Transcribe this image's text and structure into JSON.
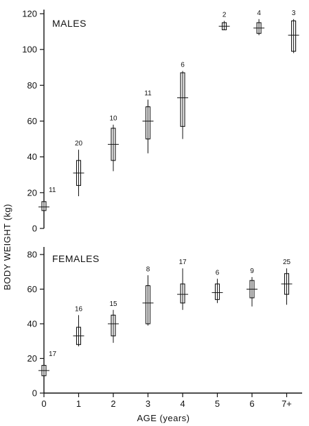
{
  "chart_data": {
    "type": "box-range",
    "ylabel": "BODY WEIGHT (kg)",
    "xlabel": "AGE (years)",
    "x_tick_labels": [
      "0",
      "1",
      "2",
      "3",
      "4",
      "5",
      "6",
      "7+"
    ],
    "panels": [
      {
        "label": "MALES",
        "ylim": [
          0,
          120
        ],
        "yticks": [
          0,
          20,
          40,
          60,
          80,
          100,
          120
        ],
        "groups": [
          {
            "age": 0,
            "n": "11",
            "min": 9,
            "max": 18,
            "box_low": 10,
            "box_high": 15,
            "mean": 12
          },
          {
            "age": 1,
            "n": "20",
            "min": 18,
            "max": 44,
            "box_low": 24,
            "box_high": 38,
            "mean": 31
          },
          {
            "age": 2,
            "n": "10",
            "min": 32,
            "max": 58,
            "box_low": 38,
            "box_high": 56,
            "mean": 47
          },
          {
            "age": 3,
            "n": "11",
            "min": 42,
            "max": 72,
            "box_low": 50,
            "box_high": 68,
            "mean": 60
          },
          {
            "age": 4,
            "n": "6",
            "min": 50,
            "max": 88,
            "box_low": 57,
            "box_high": 87,
            "mean": 73
          },
          {
            "age": 5.2,
            "n": "2",
            "min": 111,
            "max": 116,
            "box_low": 111,
            "box_high": 115,
            "mean": 113
          },
          {
            "age": 6.2,
            "n": "4",
            "min": 108,
            "max": 117,
            "box_low": 109,
            "box_high": 115,
            "mean": 112
          },
          {
            "age": 7.2,
            "n": "3",
            "min": 98,
            "max": 117,
            "box_low": 99,
            "box_high": 116,
            "mean": 108
          }
        ]
      },
      {
        "label": "FEMALES",
        "ylim": [
          0,
          80
        ],
        "yticks": [
          0,
          20,
          40,
          60,
          80
        ],
        "groups": [
          {
            "age": 0,
            "n": "17",
            "min": 7,
            "max": 19,
            "box_low": 10,
            "box_high": 16,
            "mean": 13
          },
          {
            "age": 1,
            "n": "16",
            "min": 27,
            "max": 45,
            "box_low": 28,
            "box_high": 38,
            "mean": 33
          },
          {
            "age": 2,
            "n": "15",
            "min": 29,
            "max": 48,
            "box_low": 33,
            "box_high": 45,
            "mean": 40
          },
          {
            "age": 3,
            "n": "8",
            "min": 39,
            "max": 68,
            "box_low": 40,
            "box_high": 62,
            "mean": 52
          },
          {
            "age": 4,
            "n": "17",
            "min": 48,
            "max": 72,
            "box_low": 52,
            "box_high": 63,
            "mean": 57
          },
          {
            "age": 5,
            "n": "6",
            "min": 52,
            "max": 66,
            "box_low": 54,
            "box_high": 63,
            "mean": 58
          },
          {
            "age": 6,
            "n": "9",
            "min": 50,
            "max": 67,
            "box_low": 55,
            "box_high": 65,
            "mean": 60
          },
          {
            "age": 7,
            "n": "25",
            "min": 51,
            "max": 72,
            "box_low": 57,
            "box_high": 69,
            "mean": 63
          }
        ]
      }
    ]
  }
}
